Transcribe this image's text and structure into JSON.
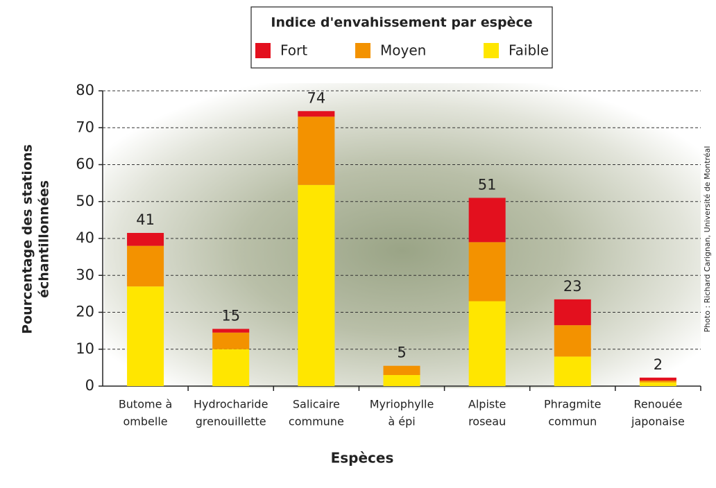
{
  "chart_data": {
    "type": "stacked_bar",
    "legend_title": "Indice d'envahissement par espèce",
    "categories": [
      [
        "Butome à",
        "ombelle"
      ],
      [
        "Hydrocharide",
        "grenouillette"
      ],
      [
        "Salicaire",
        "commune"
      ],
      [
        "Myriophylle",
        "à épi"
      ],
      [
        "Alpiste",
        "roseau"
      ],
      [
        "Phragmite",
        "commun"
      ],
      [
        "Renouée",
        "japonaise"
      ]
    ],
    "series": [
      {
        "name": "Faible",
        "color": "#ffe600",
        "values": [
          27,
          10,
          54.5,
          3,
          23,
          8,
          1
        ]
      },
      {
        "name": "Moyen",
        "color": "#f39200",
        "values": [
          11,
          4.5,
          18.5,
          2.5,
          16,
          8.5,
          0.5
        ]
      },
      {
        "name": "Fort",
        "color": "#e3101e",
        "values": [
          3.5,
          1,
          1.5,
          0,
          12,
          7,
          0.8
        ]
      }
    ],
    "totals": [
      41,
      15,
      74,
      5,
      51,
      23,
      2
    ],
    "legend_order": [
      2,
      1,
      0
    ],
    "ylabel": [
      "Pourcentage des stations",
      "échantillonnées"
    ],
    "xlabel": "Espèces",
    "credit": "Photo : Richard Carignan, Université de Montréal",
    "ylim": [
      0,
      80
    ],
    "yticks": [
      0,
      10,
      20,
      30,
      40,
      50,
      60,
      70,
      80
    ],
    "grid": true
  }
}
